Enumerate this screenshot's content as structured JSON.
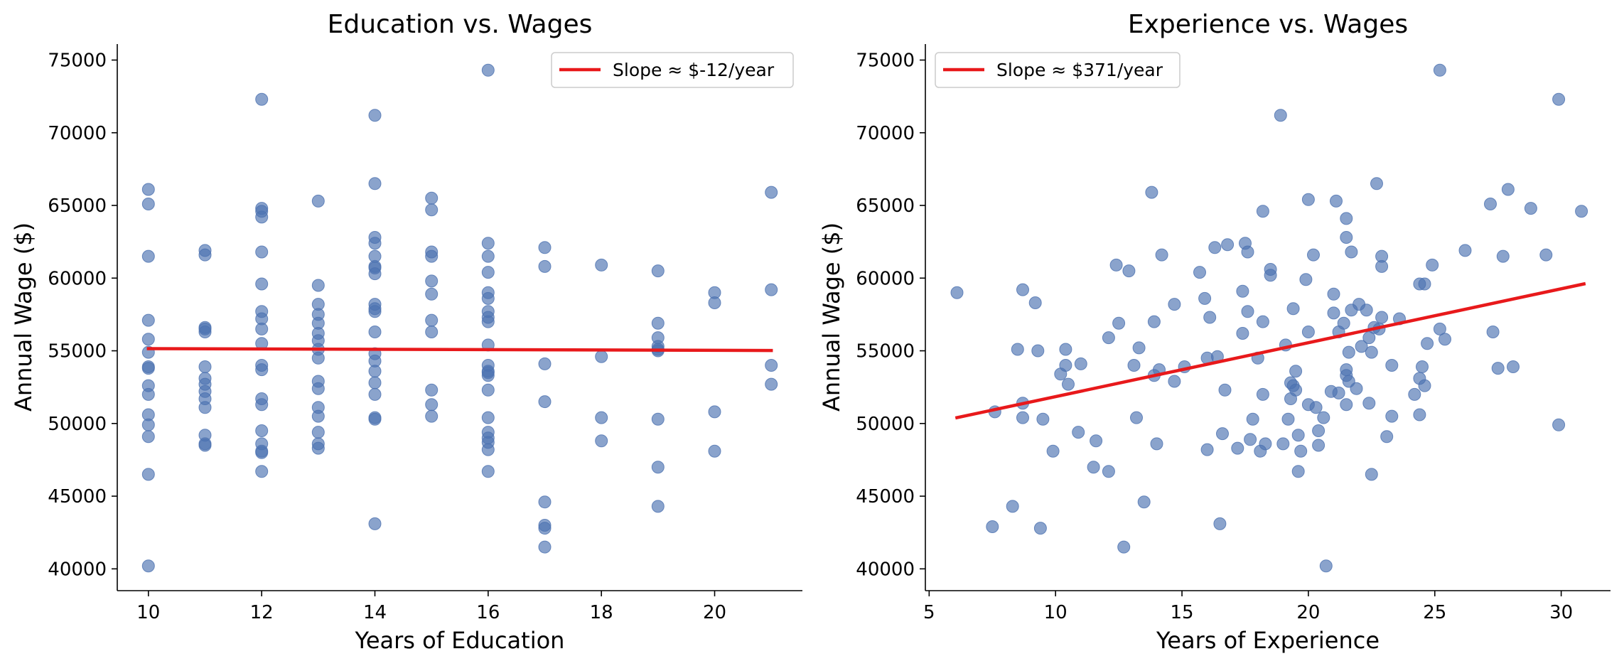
{
  "colors": {
    "background": "#ffffff",
    "points": "#4c72b0",
    "trend_line": "#e8191b",
    "axes": "#000000",
    "legend_border": "#cccccc"
  },
  "chart_data": [
    {
      "type": "scatter",
      "title": "Education vs. Wages",
      "xlabel": "Years of Education",
      "ylabel": "Annual Wage ($)",
      "xlim": [
        9.45,
        21.55
      ],
      "ylim": [
        38500,
        76100
      ],
      "xticks": [
        10,
        12,
        14,
        16,
        18,
        20
      ],
      "yticks": [
        40000,
        45000,
        50000,
        55000,
        60000,
        65000,
        70000,
        75000
      ],
      "xtick_labels": [
        "10",
        "12",
        "14",
        "16",
        "18",
        "20"
      ],
      "ytick_labels": [
        "40000",
        "45000",
        "50000",
        "55000",
        "60000",
        "65000",
        "70000",
        "75000"
      ],
      "legend": {
        "label": "Slope ≈ $-12/year",
        "placement": "top-right"
      },
      "trend_line": {
        "x": [
          10,
          21
        ],
        "y": [
          55150,
          55020
        ]
      },
      "grid": false,
      "points": [
        [
          10,
          66100
        ],
        [
          10,
          65100
        ],
        [
          10,
          61500
        ],
        [
          10,
          57100
        ],
        [
          10,
          55800
        ],
        [
          10,
          54900
        ],
        [
          10,
          53900
        ],
        [
          10,
          53800
        ],
        [
          10,
          52600
        ],
        [
          10,
          52000
        ],
        [
          10,
          50600
        ],
        [
          10,
          49900
        ],
        [
          10,
          49100
        ],
        [
          10,
          46500
        ],
        [
          10,
          40200
        ],
        [
          11,
          61900
        ],
        [
          11,
          61600
        ],
        [
          11,
          56600
        ],
        [
          11,
          56500
        ],
        [
          11,
          56300
        ],
        [
          11,
          53900
        ],
        [
          11,
          53100
        ],
        [
          11,
          52700
        ],
        [
          11,
          52200
        ],
        [
          11,
          51700
        ],
        [
          11,
          51100
        ],
        [
          11,
          49200
        ],
        [
          11,
          48600
        ],
        [
          11,
          48500
        ],
        [
          12,
          72300
        ],
        [
          12,
          64800
        ],
        [
          12,
          64600
        ],
        [
          12,
          64200
        ],
        [
          12,
          61800
        ],
        [
          12,
          59600
        ],
        [
          12,
          57700
        ],
        [
          12,
          57200
        ],
        [
          12,
          56500
        ],
        [
          12,
          55500
        ],
        [
          12,
          54000
        ],
        [
          12,
          53700
        ],
        [
          12,
          51700
        ],
        [
          12,
          51300
        ],
        [
          12,
          49500
        ],
        [
          12,
          48600
        ],
        [
          12,
          48100
        ],
        [
          12,
          48000
        ],
        [
          12,
          46700
        ],
        [
          13,
          65300
        ],
        [
          13,
          59500
        ],
        [
          13,
          58200
        ],
        [
          13,
          57500
        ],
        [
          13,
          56900
        ],
        [
          13,
          56200
        ],
        [
          13,
          55700
        ],
        [
          13,
          55100
        ],
        [
          13,
          54500
        ],
        [
          13,
          52900
        ],
        [
          13,
          52400
        ],
        [
          13,
          51100
        ],
        [
          13,
          50500
        ],
        [
          13,
          49400
        ],
        [
          13,
          48600
        ],
        [
          13,
          48300
        ],
        [
          14,
          71200
        ],
        [
          14,
          66500
        ],
        [
          14,
          62800
        ],
        [
          14,
          62400
        ],
        [
          14,
          61500
        ],
        [
          14,
          60800
        ],
        [
          14,
          60700
        ],
        [
          14,
          60300
        ],
        [
          14,
          58200
        ],
        [
          14,
          57900
        ],
        [
          14,
          57700
        ],
        [
          14,
          56300
        ],
        [
          14,
          54800
        ],
        [
          14,
          54300
        ],
        [
          14,
          53600
        ],
        [
          14,
          52800
        ],
        [
          14,
          52000
        ],
        [
          14,
          50400
        ],
        [
          14,
          50300
        ],
        [
          14,
          43100
        ],
        [
          15,
          65500
        ],
        [
          15,
          64700
        ],
        [
          15,
          61800
        ],
        [
          15,
          61500
        ],
        [
          15,
          59800
        ],
        [
          15,
          58900
        ],
        [
          15,
          57100
        ],
        [
          15,
          56300
        ],
        [
          15,
          52300
        ],
        [
          15,
          51300
        ],
        [
          15,
          50500
        ],
        [
          16,
          74300
        ],
        [
          16,
          62400
        ],
        [
          16,
          61500
        ],
        [
          16,
          60400
        ],
        [
          16,
          59000
        ],
        [
          16,
          58600
        ],
        [
          16,
          57700
        ],
        [
          16,
          57300
        ],
        [
          16,
          57000
        ],
        [
          16,
          55400
        ],
        [
          16,
          54000
        ],
        [
          16,
          53600
        ],
        [
          16,
          53500
        ],
        [
          16,
          53300
        ],
        [
          16,
          52300
        ],
        [
          16,
          50400
        ],
        [
          16,
          49400
        ],
        [
          16,
          49000
        ],
        [
          16,
          48700
        ],
        [
          16,
          48200
        ],
        [
          16,
          46700
        ],
        [
          17,
          62100
        ],
        [
          17,
          60800
        ],
        [
          17,
          54100
        ],
        [
          17,
          51500
        ],
        [
          17,
          44600
        ],
        [
          17,
          43000
        ],
        [
          17,
          42800
        ],
        [
          17,
          41500
        ],
        [
          18,
          60900
        ],
        [
          18,
          54600
        ],
        [
          18,
          50400
        ],
        [
          18,
          48800
        ],
        [
          19,
          60500
        ],
        [
          19,
          56900
        ],
        [
          19,
          55900
        ],
        [
          19,
          55300
        ],
        [
          19,
          55100
        ],
        [
          19,
          55000
        ],
        [
          19,
          50300
        ],
        [
          19,
          47000
        ],
        [
          19,
          44300
        ],
        [
          20,
          59000
        ],
        [
          20,
          58300
        ],
        [
          20,
          50800
        ],
        [
          20,
          48100
        ],
        [
          21,
          65900
        ],
        [
          21,
          59200
        ],
        [
          21,
          54000
        ],
        [
          21,
          52700
        ]
      ]
    },
    {
      "type": "scatter",
      "title": "Experience vs. Wages",
      "xlabel": "Years of Experience",
      "ylabel": "Annual Wage ($)",
      "xlim": [
        4.85,
        31.95
      ],
      "ylim": [
        38500,
        76100
      ],
      "xticks": [
        5,
        10,
        15,
        20,
        25,
        30
      ],
      "yticks": [
        40000,
        45000,
        50000,
        55000,
        60000,
        65000,
        70000,
        75000
      ],
      "xtick_labels": [
        "5",
        "10",
        "15",
        "20",
        "25",
        "30"
      ],
      "ytick_labels": [
        "40000",
        "45000",
        "50000",
        "55000",
        "60000",
        "65000",
        "70000",
        "75000"
      ],
      "legend": {
        "label": "Slope ≈ $371/year",
        "placement": "top-left"
      },
      "trend_line": {
        "x": [
          6.1,
          30.9
        ],
        "y": [
          50400,
          59600
        ]
      },
      "grid": false,
      "points": [
        [
          6.1,
          59000
        ],
        [
          7.5,
          42900
        ],
        [
          7.6,
          50800
        ],
        [
          8.3,
          44300
        ],
        [
          8.5,
          55100
        ],
        [
          8.7,
          59200
        ],
        [
          8.7,
          51400
        ],
        [
          8.7,
          50400
        ],
        [
          9.2,
          58300
        ],
        [
          9.3,
          55000
        ],
        [
          9.5,
          50300
        ],
        [
          9.4,
          42800
        ],
        [
          9.9,
          48100
        ],
        [
          10.2,
          53400
        ],
        [
          10.4,
          55100
        ],
        [
          10.4,
          54000
        ],
        [
          10.5,
          52700
        ],
        [
          10.9,
          49400
        ],
        [
          11.0,
          54100
        ],
        [
          11.5,
          47000
        ],
        [
          11.6,
          48800
        ],
        [
          12.1,
          55900
        ],
        [
          12.1,
          46700
        ],
        [
          12.4,
          60900
        ],
        [
          12.5,
          56900
        ],
        [
          12.7,
          41500
        ],
        [
          12.9,
          60500
        ],
        [
          13.1,
          54000
        ],
        [
          13.2,
          50400
        ],
        [
          13.3,
          55200
        ],
        [
          13.5,
          44600
        ],
        [
          13.8,
          65900
        ],
        [
          13.9,
          57000
        ],
        [
          13.9,
          53300
        ],
        [
          14.0,
          48600
        ],
        [
          14.1,
          53700
        ],
        [
          14.2,
          61600
        ],
        [
          14.7,
          58200
        ],
        [
          14.7,
          52900
        ],
        [
          15.1,
          53900
        ],
        [
          15.7,
          60400
        ],
        [
          15.9,
          58600
        ],
        [
          16.0,
          54500
        ],
        [
          16.0,
          48200
        ],
        [
          16.1,
          57300
        ],
        [
          16.3,
          62100
        ],
        [
          16.4,
          54600
        ],
        [
          16.5,
          43100
        ],
        [
          16.6,
          49300
        ],
        [
          16.7,
          52300
        ],
        [
          16.8,
          62300
        ],
        [
          17.2,
          48300
        ],
        [
          17.4,
          59100
        ],
        [
          17.4,
          56200
        ],
        [
          17.5,
          62400
        ],
        [
          17.6,
          61800
        ],
        [
          17.6,
          57700
        ],
        [
          17.7,
          48900
        ],
        [
          17.8,
          50300
        ],
        [
          18.0,
          54500
        ],
        [
          18.1,
          48100
        ],
        [
          18.2,
          64600
        ],
        [
          18.2,
          57000
        ],
        [
          18.2,
          52000
        ],
        [
          18.3,
          48600
        ],
        [
          18.5,
          60600
        ],
        [
          18.5,
          60200
        ],
        [
          18.9,
          71200
        ],
        [
          19.0,
          48600
        ],
        [
          19.1,
          55400
        ],
        [
          19.2,
          50300
        ],
        [
          19.3,
          52800
        ],
        [
          19.3,
          51700
        ],
        [
          19.4,
          52600
        ],
        [
          19.4,
          57900
        ],
        [
          19.5,
          52300
        ],
        [
          19.5,
          53600
        ],
        [
          19.6,
          49200
        ],
        [
          19.6,
          46700
        ],
        [
          19.7,
          48100
        ],
        [
          19.9,
          59900
        ],
        [
          20.0,
          65400
        ],
        [
          20.0,
          56300
        ],
        [
          20.0,
          51300
        ],
        [
          20.2,
          61600
        ],
        [
          20.3,
          51100
        ],
        [
          20.4,
          48500
        ],
        [
          20.4,
          49500
        ],
        [
          20.6,
          50400
        ],
        [
          20.7,
          40200
        ],
        [
          20.9,
          52200
        ],
        [
          21.0,
          58900
        ],
        [
          21.0,
          57600
        ],
        [
          21.1,
          65300
        ],
        [
          21.2,
          52100
        ],
        [
          21.2,
          56300
        ],
        [
          21.4,
          56900
        ],
        [
          21.5,
          64100
        ],
        [
          21.5,
          62800
        ],
        [
          21.5,
          53700
        ],
        [
          21.5,
          53300
        ],
        [
          21.5,
          51300
        ],
        [
          21.6,
          54900
        ],
        [
          21.6,
          52900
        ],
        [
          21.7,
          57800
        ],
        [
          21.7,
          61800
        ],
        [
          21.9,
          52400
        ],
        [
          22.0,
          58200
        ],
        [
          22.1,
          55300
        ],
        [
          22.3,
          57800
        ],
        [
          22.4,
          55900
        ],
        [
          22.4,
          51400
        ],
        [
          22.5,
          54900
        ],
        [
          22.5,
          46500
        ],
        [
          22.6,
          56600
        ],
        [
          22.7,
          66500
        ],
        [
          22.8,
          56500
        ],
        [
          22.9,
          61500
        ],
        [
          22.9,
          60800
        ],
        [
          22.9,
          57300
        ],
        [
          23.1,
          49100
        ],
        [
          23.3,
          54000
        ],
        [
          23.3,
          50500
        ],
        [
          23.6,
          57200
        ],
        [
          24.2,
          52000
        ],
        [
          24.4,
          53100
        ],
        [
          24.4,
          50600
        ],
        [
          24.4,
          59600
        ],
        [
          24.5,
          53900
        ],
        [
          24.6,
          59600
        ],
        [
          24.6,
          52600
        ],
        [
          24.7,
          55500
        ],
        [
          24.9,
          60900
        ],
        [
          25.2,
          74300
        ],
        [
          25.2,
          56500
        ],
        [
          25.4,
          55800
        ],
        [
          26.2,
          61900
        ],
        [
          27.2,
          65100
        ],
        [
          27.3,
          56300
        ],
        [
          27.5,
          53800
        ],
        [
          27.7,
          61500
        ],
        [
          27.9,
          66100
        ],
        [
          28.1,
          53900
        ],
        [
          28.8,
          64800
        ],
        [
          29.4,
          61600
        ],
        [
          29.9,
          72300
        ],
        [
          29.9,
          49900
        ],
        [
          30.8,
          64600
        ]
      ]
    }
  ]
}
